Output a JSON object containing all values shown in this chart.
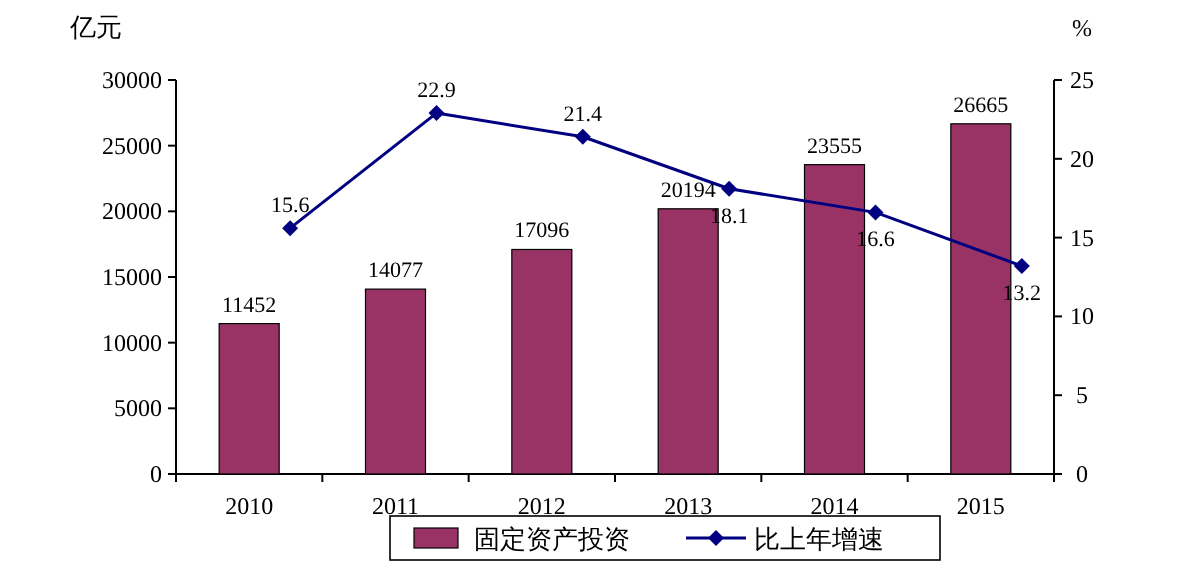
{
  "chart_data": {
    "type": "bar",
    "ylabel": "亿元",
    "y2label": "%",
    "categories": [
      "2010",
      "2011",
      "2012",
      "2013",
      "2014",
      "2015"
    ],
    "series": [
      {
        "name": "固定资产投资",
        "color": "#993366",
        "values": [
          11452,
          14077,
          17096,
          20194,
          23555,
          26665
        ]
      },
      {
        "name": "比上年增速",
        "type": "line",
        "axis": "y2",
        "color": "#000080",
        "marker": "diamond",
        "values": [
          15.6,
          22.9,
          21.4,
          18.1,
          16.6,
          13.2
        ]
      }
    ],
    "ylim": [
      0,
      30000
    ],
    "yticks": [
      0,
      5000,
      10000,
      15000,
      20000,
      25000,
      30000
    ],
    "y2lim": [
      0,
      25
    ],
    "y2ticks": [
      0,
      5,
      10,
      15,
      20,
      25
    ],
    "data_labels": true,
    "legend": "bottom",
    "grid": false
  }
}
